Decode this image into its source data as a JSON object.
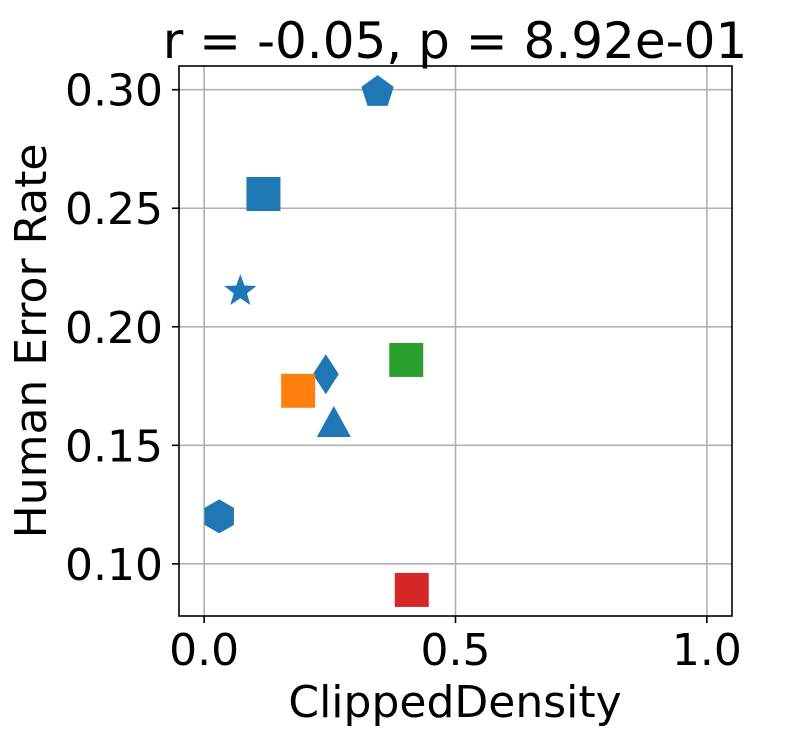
{
  "chart_data": {
    "type": "scatter",
    "title": "r = -0.05, p = 8.92e-01",
    "xlabel": "ClippedDensity",
    "ylabel": "Human Error Rate",
    "xlim": [
      -0.05,
      1.05
    ],
    "ylim": [
      0.078,
      0.31
    ],
    "xticks": [
      0.0,
      0.5,
      1.0
    ],
    "xtick_labels": [
      "0.0",
      "0.5",
      "1.0"
    ],
    "yticks": [
      0.1,
      0.15,
      0.2,
      0.25,
      0.3
    ],
    "ytick_labels": [
      "0.10",
      "0.15",
      "0.20",
      "0.25",
      "0.30"
    ],
    "grid": true,
    "legend": "none",
    "points": [
      {
        "x": 0.345,
        "y": 0.299,
        "marker": "pentagon",
        "color": "#1f77b4"
      },
      {
        "x": 0.118,
        "y": 0.256,
        "marker": "square",
        "color": "#1f77b4"
      },
      {
        "x": 0.072,
        "y": 0.215,
        "marker": "star",
        "color": "#1f77b4"
      },
      {
        "x": 0.242,
        "y": 0.18,
        "marker": "diamond",
        "color": "#1f77b4"
      },
      {
        "x": 0.402,
        "y": 0.186,
        "marker": "square",
        "color": "#2ca02c"
      },
      {
        "x": 0.187,
        "y": 0.173,
        "marker": "square",
        "color": "#ff7f0e"
      },
      {
        "x": 0.258,
        "y": 0.159,
        "marker": "triangle",
        "color": "#1f77b4"
      },
      {
        "x": 0.03,
        "y": 0.12,
        "marker": "hexagon",
        "color": "#1f77b4"
      },
      {
        "x": 0.413,
        "y": 0.089,
        "marker": "square",
        "color": "#d62728"
      }
    ]
  }
}
